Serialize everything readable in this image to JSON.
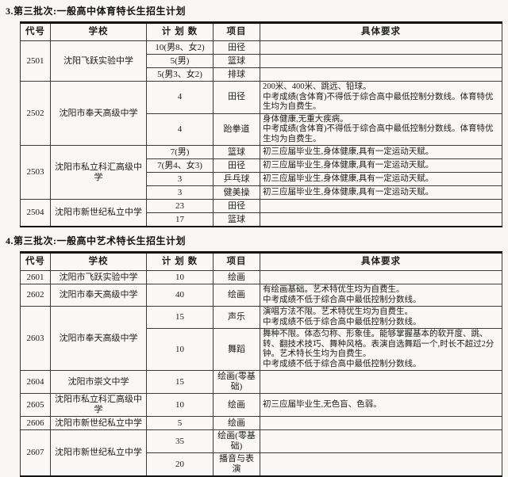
{
  "titles": {
    "table1": "3.第三批次:一般高中体育特长生招生计划",
    "table2": "4.第三批次:一般高中艺术特长生招生计划"
  },
  "tables": {
    "table1": {
      "headers": [
        "代号",
        "学校",
        "计 划 数",
        "项目",
        "具体要求"
      ],
      "groups": [
        {
          "code": "2501",
          "school": "沈阳飞跃实验中学",
          "rows": [
            {
              "plan": "10(男8、女2)",
              "item": "田径",
              "req": ""
            },
            {
              "plan": "5(男)",
              "item": "篮球",
              "req": ""
            },
            {
              "plan": "5(男3、女2)",
              "item": "排球",
              "req": ""
            }
          ]
        },
        {
          "code": "2502",
          "school": "沈阳市奉天高级中学",
          "rows": [
            {
              "plan": "4",
              "item": "田径",
              "req": "200米、400米、跳远、铅球。\n中考成绩(含体育)不得低于综合高中最低控制分数线。体育特优生均为自费生。"
            },
            {
              "plan": "4",
              "item": "跆拳道",
              "req": "身体健康,无重大疾病。\n中考成绩(含体育)不得低于综合高中最低控制分数线。体育特优生均为自费生。"
            }
          ]
        },
        {
          "code": "2503",
          "school": "沈阳市私立科汇高级中学",
          "rows": [
            {
              "plan": "7(男)",
              "item": "篮球",
              "req": "初三应届毕业生,身体健康,具有一定运动天赋。"
            },
            {
              "plan": "7(男4、女3)",
              "item": "田径",
              "req": "初三应届毕业生,身体健康,具有一定运动天赋。"
            },
            {
              "plan": "3",
              "item": "乒乓球",
              "req": "初三应届毕业生,身体健康,具有一定运动天赋。"
            },
            {
              "plan": "3",
              "item": "健美操",
              "req": "初三应届毕业生,身体健康,具有一定运动天赋。"
            }
          ]
        },
        {
          "code": "2504",
          "school": "沈阳市新世纪私立中学",
          "rows": [
            {
              "plan": "23",
              "item": "田径",
              "req": ""
            },
            {
              "plan": "17",
              "item": "篮球",
              "req": ""
            }
          ]
        }
      ]
    },
    "table2": {
      "headers": [
        "代号",
        "学校",
        "计 划 数",
        "项目",
        "具体要求"
      ],
      "groups": [
        {
          "code": "2601",
          "school": "沈阳市飞跃实验中学",
          "rows": [
            {
              "plan": "10",
              "item": "绘画",
              "req": ""
            }
          ]
        },
        {
          "code": "2602",
          "school": "沈阳市奉天高级中学",
          "rows": [
            {
              "plan": "40",
              "item": "绘画",
              "req": "有绘画基础。艺术特优生均为自费生。\n中考成绩不低于综合高中最低控制分数线。"
            }
          ]
        },
        {
          "code": "2603",
          "school": "沈阳市奉天高级中学",
          "rows": [
            {
              "plan": "15",
              "item": "声乐",
              "req": "演唱方法不限。艺术特优生均为自费生。\n中考成绩不低于综合高中最低控制分数线。"
            },
            {
              "plan": "10",
              "item": "舞蹈",
              "req": "舞种不限。体态匀称、形象佳。能够掌握基本的软开度、跳、转、翻技术技巧、舞种风格。表演自选舞蹈一个,时长不超过2分钟。艺术特长生均为自费生。\n中考成绩不低于综合高中最低控制分数线。"
            }
          ]
        },
        {
          "code": "2604",
          "school": "沈阳市崇文中学",
          "rows": [
            {
              "plan": "15",
              "item": "绘画(零基础)",
              "req": ""
            }
          ]
        },
        {
          "code": "2605",
          "school": "沈阳市私立科汇高级中学",
          "rows": [
            {
              "plan": "10",
              "item": "绘画",
              "req": "初三应届毕业生,无色盲、色弱。"
            }
          ]
        },
        {
          "code": "2606",
          "school": "沈阳市新世纪私立中学",
          "rows": [
            {
              "plan": "5",
              "item": "绘画",
              "req": ""
            }
          ]
        },
        {
          "code": "2607",
          "school": "沈阳市新世纪私立中学",
          "rows": [
            {
              "plan": "35",
              "item": "绘画(零基础)",
              "req": ""
            },
            {
              "plan": "20",
              "item": "播音与表演",
              "req": ""
            }
          ]
        }
      ]
    }
  },
  "colors": {
    "page_bg": "#f7f6f3",
    "border": "#3c3c3c",
    "heavy_rule": "#141414",
    "text": "#1d1d1d"
  }
}
